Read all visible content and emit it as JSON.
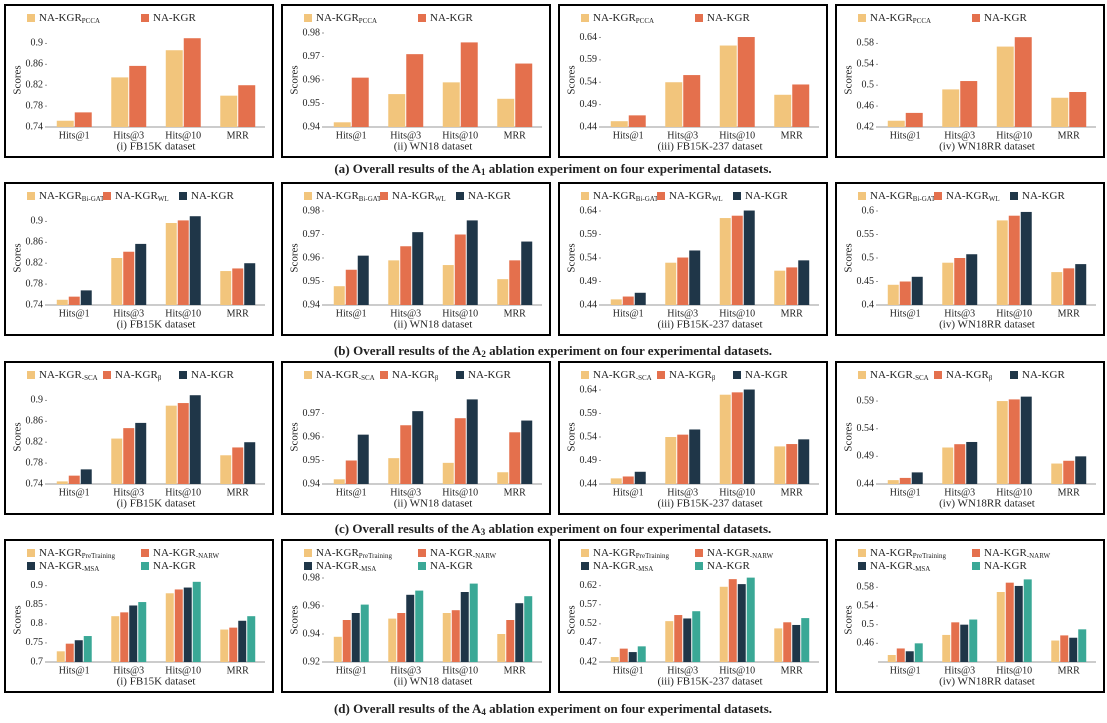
{
  "chart_data": [
    {
      "type": "bar",
      "ylabel": "Scores",
      "xlabel": "(i) FB15K dataset",
      "categories": [
        "Hits@1",
        "Hits@3",
        "Hits@10",
        "MRR"
      ],
      "ylim": [
        0.74,
        0.92
      ],
      "yticks": [
        0.74,
        0.78,
        0.82,
        0.86,
        0.9
      ],
      "series": [
        {
          "name": "NA-KGR",
          "sub": "PCCA",
          "color": "#f2c57c",
          "values": [
            0.752,
            0.835,
            0.887,
            0.8
          ]
        },
        {
          "name": "NA-KGR",
          "color": "#e4704d",
          "values": [
            0.768,
            0.857,
            0.91,
            0.82
          ]
        }
      ]
    },
    {
      "type": "bar",
      "ylabel": "Scores",
      "xlabel": "(ii) WN18 dataset",
      "categories": [
        "Hits@1",
        "Hits@3",
        "Hits@10",
        "MRR"
      ],
      "ylim": [
        0.94,
        0.98
      ],
      "yticks": [
        0.94,
        0.95,
        0.96,
        0.97,
        0.98
      ],
      "series": [
        {
          "name": "NA-KGR",
          "sub": "PCCA",
          "color": "#f2c57c",
          "values": [
            0.942,
            0.954,
            0.959,
            0.952
          ]
        },
        {
          "name": "NA-KGR",
          "color": "#e4704d",
          "values": [
            0.961,
            0.971,
            0.976,
            0.967
          ]
        }
      ]
    },
    {
      "type": "bar",
      "ylabel": "Scores",
      "xlabel": "(iii) FB15K-237 dataset",
      "categories": [
        "Hits@1",
        "Hits@3",
        "Hits@10",
        "MRR"
      ],
      "ylim": [
        0.44,
        0.65
      ],
      "yticks": [
        0.44,
        0.49,
        0.54,
        0.59,
        0.64
      ],
      "series": [
        {
          "name": "NA-KGR",
          "sub": "PCCA",
          "color": "#f2c57c",
          "values": [
            0.453,
            0.54,
            0.622,
            0.512
          ]
        },
        {
          "name": "NA-KGR",
          "color": "#e4704d",
          "values": [
            0.466,
            0.556,
            0.641,
            0.535
          ]
        }
      ]
    },
    {
      "type": "bar",
      "ylabel": "Scores",
      "xlabel": "(iv) WN18RR dataset",
      "categories": [
        "Hits@1",
        "Hits@3",
        "Hits@10",
        "MRR"
      ],
      "ylim": [
        0.42,
        0.6
      ],
      "yticks": [
        0.42,
        0.46,
        0.5,
        0.54,
        0.58
      ],
      "series": [
        {
          "name": "NA-KGR",
          "sub": "PCCA",
          "color": "#f2c57c",
          "values": [
            0.432,
            0.492,
            0.574,
            0.476
          ]
        },
        {
          "name": "NA-KGR",
          "color": "#e4704d",
          "values": [
            0.447,
            0.508,
            0.592,
            0.487
          ]
        }
      ]
    },
    {
      "type": "bar",
      "ylabel": "Scores",
      "xlabel": "(i) FB15K dataset",
      "categories": [
        "Hits@1",
        "Hits@3",
        "Hits@10",
        "MRR"
      ],
      "ylim": [
        0.74,
        0.92
      ],
      "yticks": [
        0.74,
        0.78,
        0.82,
        0.86,
        0.9
      ],
      "series": [
        {
          "name": "NA-KGR",
          "sub": "Bi-GAT",
          "color": "#f2c57c",
          "values": [
            0.75,
            0.83,
            0.897,
            0.805
          ]
        },
        {
          "name": "NA-KGR",
          "sub": "WL",
          "color": "#e4704d",
          "values": [
            0.756,
            0.842,
            0.902,
            0.81
          ]
        },
        {
          "name": "NA-KGR",
          "color": "#1f3648",
          "values": [
            0.768,
            0.857,
            0.91,
            0.82
          ]
        }
      ]
    },
    {
      "type": "bar",
      "ylabel": "Scores",
      "xlabel": "(ii) WN18 dataset",
      "categories": [
        "Hits@1",
        "Hits@3",
        "Hits@10",
        "MRR"
      ],
      "ylim": [
        0.94,
        0.98
      ],
      "yticks": [
        0.94,
        0.95,
        0.96,
        0.97,
        0.98
      ],
      "series": [
        {
          "name": "NA-KGR",
          "sub": "Bi-GAT",
          "color": "#f2c57c",
          "values": [
            0.948,
            0.959,
            0.957,
            0.951
          ]
        },
        {
          "name": "NA-KGR",
          "sub": "WL",
          "color": "#e4704d",
          "values": [
            0.955,
            0.965,
            0.97,
            0.959
          ]
        },
        {
          "name": "NA-KGR",
          "color": "#1f3648",
          "values": [
            0.961,
            0.971,
            0.976,
            0.967
          ]
        }
      ]
    },
    {
      "type": "bar",
      "ylabel": "Scores",
      "xlabel": "(iii) FB15K-237 dataset",
      "categories": [
        "Hits@1",
        "Hits@3",
        "Hits@10",
        "MRR"
      ],
      "ylim": [
        0.44,
        0.64
      ],
      "yticks": [
        0.44,
        0.49,
        0.54,
        0.59,
        0.64
      ],
      "series": [
        {
          "name": "NA-KGR",
          "sub": "Bi-GAT",
          "color": "#f2c57c",
          "values": [
            0.452,
            0.53,
            0.625,
            0.513
          ]
        },
        {
          "name": "NA-KGR",
          "sub": "WL",
          "color": "#e4704d",
          "values": [
            0.458,
            0.541,
            0.63,
            0.52
          ]
        },
        {
          "name": "NA-KGR",
          "color": "#1f3648",
          "values": [
            0.466,
            0.556,
            0.641,
            0.535
          ]
        }
      ]
    },
    {
      "type": "bar",
      "ylabel": "Scores",
      "xlabel": "(iv) WN18RR dataset",
      "categories": [
        "Hits@1",
        "Hits@3",
        "Hits@10",
        "MRR"
      ],
      "ylim": [
        0.4,
        0.6
      ],
      "yticks": [
        0.4,
        0.45,
        0.5,
        0.55,
        0.6
      ],
      "series": [
        {
          "name": "NA-KGR",
          "sub": "Bi-GAT",
          "color": "#f2c57c",
          "values": [
            0.443,
            0.49,
            0.58,
            0.47
          ]
        },
        {
          "name": "NA-KGR",
          "sub": "WL",
          "color": "#e4704d",
          "values": [
            0.45,
            0.5,
            0.59,
            0.478
          ]
        },
        {
          "name": "NA-KGR",
          "color": "#1f3648",
          "values": [
            0.46,
            0.508,
            0.598,
            0.487
          ]
        }
      ]
    },
    {
      "type": "bar",
      "ylabel": "Scores",
      "xlabel": "(i) FB15K dataset",
      "categories": [
        "Hits@1",
        "Hits@3",
        "Hits@10",
        "MRR"
      ],
      "ylim": [
        0.74,
        0.92
      ],
      "yticks": [
        0.74,
        0.78,
        0.82,
        0.86,
        0.9
      ],
      "series": [
        {
          "name": "NA-KGR",
          "sub": "-SCA",
          "color": "#f2c57c",
          "values": [
            0.745,
            0.827,
            0.89,
            0.795
          ]
        },
        {
          "name": "NA-KGR",
          "sub": "β",
          "color": "#e4704d",
          "values": [
            0.756,
            0.847,
            0.895,
            0.81
          ]
        },
        {
          "name": "NA-KGR",
          "color": "#1f3648",
          "values": [
            0.768,
            0.857,
            0.91,
            0.82
          ]
        }
      ]
    },
    {
      "type": "bar",
      "ylabel": "Scores",
      "xlabel": "(ii) WN18 dataset",
      "categories": [
        "Hits@1",
        "Hits@3",
        "Hits@10",
        "MRR"
      ],
      "ylim": [
        0.94,
        0.98
      ],
      "yticks": [
        0.94,
        0.95,
        0.96,
        0.97
      ],
      "series": [
        {
          "name": "NA-KGR",
          "sub": "-SCA",
          "color": "#f2c57c",
          "values": [
            0.942,
            0.951,
            0.949,
            0.945
          ]
        },
        {
          "name": "NA-KGR",
          "sub": "β",
          "color": "#e4704d",
          "values": [
            0.95,
            0.965,
            0.968,
            0.962
          ]
        },
        {
          "name": "NA-KGR",
          "color": "#1f3648",
          "values": [
            0.961,
            0.971,
            0.976,
            0.967
          ]
        }
      ]
    },
    {
      "type": "bar",
      "ylabel": "Scores",
      "xlabel": "(iii) FB15K-237 dataset",
      "categories": [
        "Hits@1",
        "Hits@3",
        "Hits@10",
        "MRR"
      ],
      "ylim": [
        0.44,
        0.64
      ],
      "yticks": [
        0.44,
        0.49,
        0.54,
        0.59,
        0.64
      ],
      "series": [
        {
          "name": "NA-KGR",
          "sub": "-SCA",
          "color": "#f2c57c",
          "values": [
            0.452,
            0.54,
            0.63,
            0.52
          ]
        },
        {
          "name": "NA-KGR",
          "sub": "β",
          "color": "#e4704d",
          "values": [
            0.456,
            0.545,
            0.635,
            0.525
          ]
        },
        {
          "name": "NA-KGR",
          "color": "#1f3648",
          "values": [
            0.466,
            0.556,
            0.641,
            0.535
          ]
        }
      ]
    },
    {
      "type": "bar",
      "ylabel": "Scores",
      "xlabel": "(iv) WN18RR dataset",
      "categories": [
        "Hits@1",
        "Hits@3",
        "Hits@10",
        "MRR"
      ],
      "ylim": [
        0.44,
        0.61
      ],
      "yticks": [
        0.44,
        0.49,
        0.54,
        0.59
      ],
      "series": [
        {
          "name": "NA-KGR",
          "sub": "-SCA",
          "color": "#f2c57c",
          "values": [
            0.447,
            0.506,
            0.59,
            0.477
          ]
        },
        {
          "name": "NA-KGR",
          "sub": "β",
          "color": "#e4704d",
          "values": [
            0.451,
            0.512,
            0.593,
            0.482
          ]
        },
        {
          "name": "NA-KGR",
          "color": "#1f3648",
          "values": [
            0.461,
            0.516,
            0.598,
            0.49
          ]
        }
      ]
    },
    {
      "type": "bar",
      "ylabel": "Scores",
      "xlabel": "(i) FB15K dataset",
      "categories": [
        "Hits@1",
        "Hits@3",
        "Hits@10",
        "MRR"
      ],
      "ylim": [
        0.7,
        0.92
      ],
      "yticks": [
        0.7,
        0.75,
        0.8,
        0.85,
        0.9
      ],
      "series": [
        {
          "name": "NA-KGR",
          "sub": "PreTraining",
          "color": "#f2c57c",
          "values": [
            0.728,
            0.82,
            0.88,
            0.785
          ]
        },
        {
          "name": "NA-KGR",
          "sub": "-NARW",
          "color": "#e4704d",
          "values": [
            0.748,
            0.83,
            0.89,
            0.79
          ]
        },
        {
          "name": "NA-KGR",
          "sub": "-MSA",
          "color": "#1f3648",
          "values": [
            0.757,
            0.848,
            0.895,
            0.808
          ]
        },
        {
          "name": "NA-KGR",
          "color": "#3aa896",
          "values": [
            0.768,
            0.857,
            0.91,
            0.82
          ]
        }
      ]
    },
    {
      "type": "bar",
      "ylabel": "Scores",
      "xlabel": "(ii) WN18 dataset",
      "categories": [
        "Hits@1",
        "Hits@3",
        "Hits@10",
        "MRR"
      ],
      "ylim": [
        0.92,
        0.98
      ],
      "yticks": [
        0.92,
        0.94,
        0.96,
        0.98
      ],
      "series": [
        {
          "name": "NA-KGR",
          "sub": "PreTraining",
          "color": "#f2c57c",
          "values": [
            0.938,
            0.951,
            0.955,
            0.94
          ]
        },
        {
          "name": "NA-KGR",
          "sub": "-NARW",
          "color": "#e4704d",
          "values": [
            0.95,
            0.955,
            0.957,
            0.95
          ]
        },
        {
          "name": "NA-KGR",
          "sub": "-MSA",
          "color": "#1f3648",
          "values": [
            0.955,
            0.968,
            0.97,
            0.962
          ]
        },
        {
          "name": "NA-KGR",
          "color": "#3aa896",
          "values": [
            0.961,
            0.971,
            0.976,
            0.967
          ]
        }
      ]
    },
    {
      "type": "bar",
      "ylabel": "Scores",
      "xlabel": "(iii) FB15K-237 dataset",
      "categories": [
        "Hits@1",
        "Hits@3",
        "Hits@10",
        "MRR"
      ],
      "ylim": [
        0.42,
        0.64
      ],
      "yticks": [
        0.42,
        0.47,
        0.52,
        0.57,
        0.62
      ],
      "series": [
        {
          "name": "NA-KGR",
          "sub": "PreTraining",
          "color": "#f2c57c",
          "values": [
            0.433,
            0.527,
            0.617,
            0.508
          ]
        },
        {
          "name": "NA-KGR",
          "sub": "-NARW",
          "color": "#e4704d",
          "values": [
            0.455,
            0.543,
            0.637,
            0.524
          ]
        },
        {
          "name": "NA-KGR",
          "sub": "-MSA",
          "color": "#1f3648",
          "values": [
            0.446,
            0.534,
            0.624,
            0.517
          ]
        },
        {
          "name": "NA-KGR",
          "color": "#3aa896",
          "values": [
            0.461,
            0.553,
            0.641,
            0.535
          ]
        }
      ]
    },
    {
      "type": "bar",
      "ylabel": "Scores",
      "xlabel": "(iv) WN18RR dataset",
      "categories": [
        "Hits@1",
        "Hits@3",
        "Hits@10",
        "MRR"
      ],
      "ylim": [
        0.42,
        0.6
      ],
      "yticks": [
        0.46,
        0.5,
        0.54,
        0.58
      ],
      "series": [
        {
          "name": "NA-KGR",
          "sub": "PreTraining",
          "color": "#f2c57c",
          "values": [
            0.435,
            0.478,
            0.57,
            0.466
          ]
        },
        {
          "name": "NA-KGR",
          "sub": "-NARW",
          "color": "#e4704d",
          "values": [
            0.449,
            0.505,
            0.59,
            0.477
          ]
        },
        {
          "name": "NA-KGR",
          "sub": "-MSA",
          "color": "#1f3648",
          "values": [
            0.443,
            0.5,
            0.583,
            0.472
          ]
        },
        {
          "name": "NA-KGR",
          "color": "#3aa896",
          "values": [
            0.46,
            0.511,
            0.597,
            0.49
          ]
        }
      ]
    }
  ],
  "captions": [
    {
      "prefix": "(a) Overall results of the A",
      "sub": "1",
      "suffix": " ablation experiment on four experimental datasets."
    },
    {
      "prefix": "(b) Overall results of the A",
      "sub": "2",
      "suffix": " ablation experiment on four experimental datasets."
    },
    {
      "prefix": "(c) Overall results of the A",
      "sub": "3",
      "suffix": " ablation experiment on four experimental datasets."
    },
    {
      "prefix": "(d) Overall results of the A",
      "sub": "4",
      "suffix": " ablation experiment on four experimental datasets."
    }
  ]
}
